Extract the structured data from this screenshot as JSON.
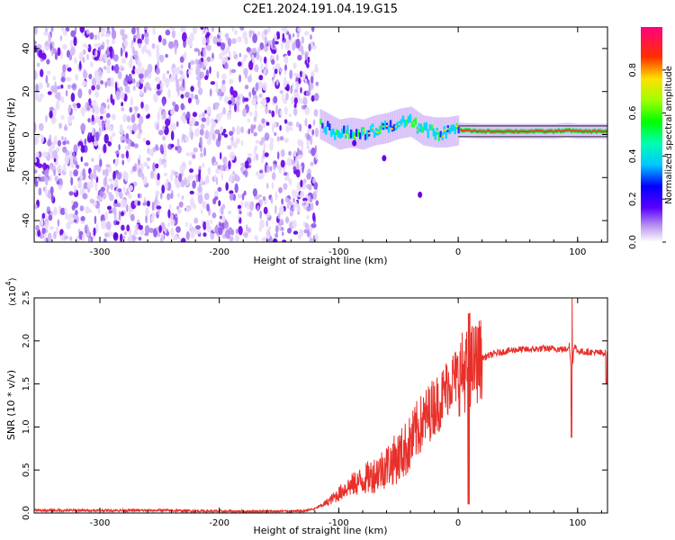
{
  "title": "C2E1.2024.191.04.19.G15",
  "colors": {
    "snr_line": "#e8302a",
    "spectrogram_noise": "#6a00e8",
    "axis": "#000000"
  },
  "chart_data": [
    {
      "type": "heatmap",
      "xlabel": "Height of straight line (km)",
      "ylabel": "Frequency (Hz)",
      "xlim": [
        -355,
        125
      ],
      "ylim": [
        -50,
        50
      ],
      "x_ticks": [
        -300,
        -200,
        -100,
        0,
        100
      ],
      "x_tick_labels": [
        "-300",
        "-200",
        "-100",
        "0",
        "100"
      ],
      "y_ticks": [
        -40,
        -20,
        0,
        20,
        40
      ],
      "y_tick_labels": [
        "-40",
        "-20",
        "0",
        "20",
        "40"
      ],
      "noise_region_x": [
        -355,
        -118
      ],
      "signal_ridge": [
        {
          "x": -120,
          "y": 6
        },
        {
          "x": -110,
          "y": 3
        },
        {
          "x": -100,
          "y": 0
        },
        {
          "x": -90,
          "y": 1
        },
        {
          "x": -80,
          "y": 0
        },
        {
          "x": -70,
          "y": 2
        },
        {
          "x": -60,
          "y": 3
        },
        {
          "x": -50,
          "y": 5
        },
        {
          "x": -40,
          "y": 6
        },
        {
          "x": -30,
          "y": 2
        },
        {
          "x": -20,
          "y": 1
        },
        {
          "x": -10,
          "y": 1
        },
        {
          "x": 0,
          "y": 2
        },
        {
          "x": 20,
          "y": 1.5
        },
        {
          "x": 50,
          "y": 1.5
        },
        {
          "x": 80,
          "y": 1.5
        },
        {
          "x": 90,
          "y": 2
        },
        {
          "x": 100,
          "y": 1.5
        },
        {
          "x": 125,
          "y": 1.5
        }
      ],
      "colorbar": {
        "label": "Normalized spectral amplitude",
        "range": [
          0,
          1
        ],
        "ticks": [
          0.0,
          0.2,
          0.4,
          0.6,
          0.8
        ],
        "tick_labels": [
          "0.0",
          "0.2",
          "0.4",
          "0.6",
          "0.8"
        ]
      }
    },
    {
      "type": "line",
      "xlabel": "Height of straight line (km)",
      "ylabel": "SNR (10 * v/v)",
      "y_multiplier_label": "(x10",
      "y_multiplier_exp": "4",
      "y_multiplier_close": ")",
      "xlim": [
        -355,
        125
      ],
      "ylim": [
        0,
        2.5
      ],
      "x_ticks": [
        -300,
        -200,
        -100,
        0,
        100
      ],
      "x_tick_labels": [
        "-300",
        "-200",
        "-100",
        "0",
        "100"
      ],
      "y_ticks": [
        0.0,
        0.5,
        1.0,
        1.5,
        2.0,
        2.5
      ],
      "y_tick_labels": [
        "0.0",
        "0.5",
        "1.0",
        "1.5",
        "2.0",
        "2.5"
      ],
      "series": [
        {
          "x": [
            -355,
            -300,
            -250,
            -200,
            -150,
            -130,
            -120,
            -110,
            -100,
            -95,
            -90,
            -80,
            -70,
            -60,
            -50,
            -40,
            -35,
            -30,
            -25,
            -20,
            -15,
            -10,
            -5,
            0,
            5,
            10,
            15,
            20,
            30,
            40,
            50,
            60,
            70,
            80,
            90,
            93,
            95,
            97,
            100,
            110,
            120,
            125
          ],
          "y": [
            0.03,
            0.03,
            0.03,
            0.02,
            0.02,
            0.02,
            0.05,
            0.12,
            0.22,
            0.28,
            0.32,
            0.38,
            0.45,
            0.55,
            0.65,
            0.8,
            0.95,
            1.05,
            1.15,
            1.25,
            1.3,
            1.45,
            1.55,
            1.6,
            1.65,
            1.7,
            1.75,
            1.8,
            1.85,
            1.88,
            1.9,
            1.9,
            1.91,
            1.91,
            1.9,
            1.95,
            1.6,
            1.95,
            1.88,
            1.87,
            1.86,
            1.86
          ]
        }
      ]
    }
  ]
}
